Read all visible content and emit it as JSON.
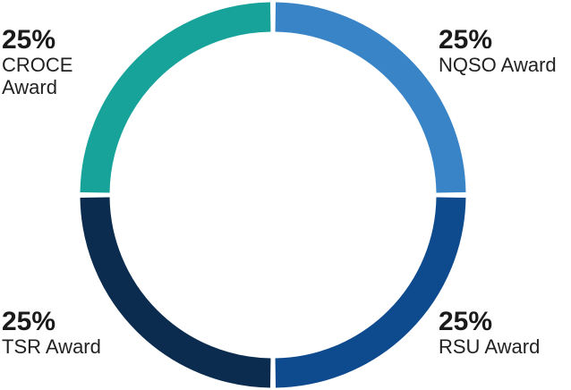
{
  "chart_data": {
    "type": "donut",
    "categories": [
      "NQSO Award",
      "RSU Award",
      "TSR Award",
      "CROCE Award"
    ],
    "values": [
      25,
      25,
      25,
      25
    ],
    "value_labels": [
      "25%",
      "25%",
      "25%",
      "25%"
    ],
    "colors": [
      "#3884c7",
      "#0e4a8e",
      "#0b2c4e",
      "#17a39a"
    ]
  }
}
